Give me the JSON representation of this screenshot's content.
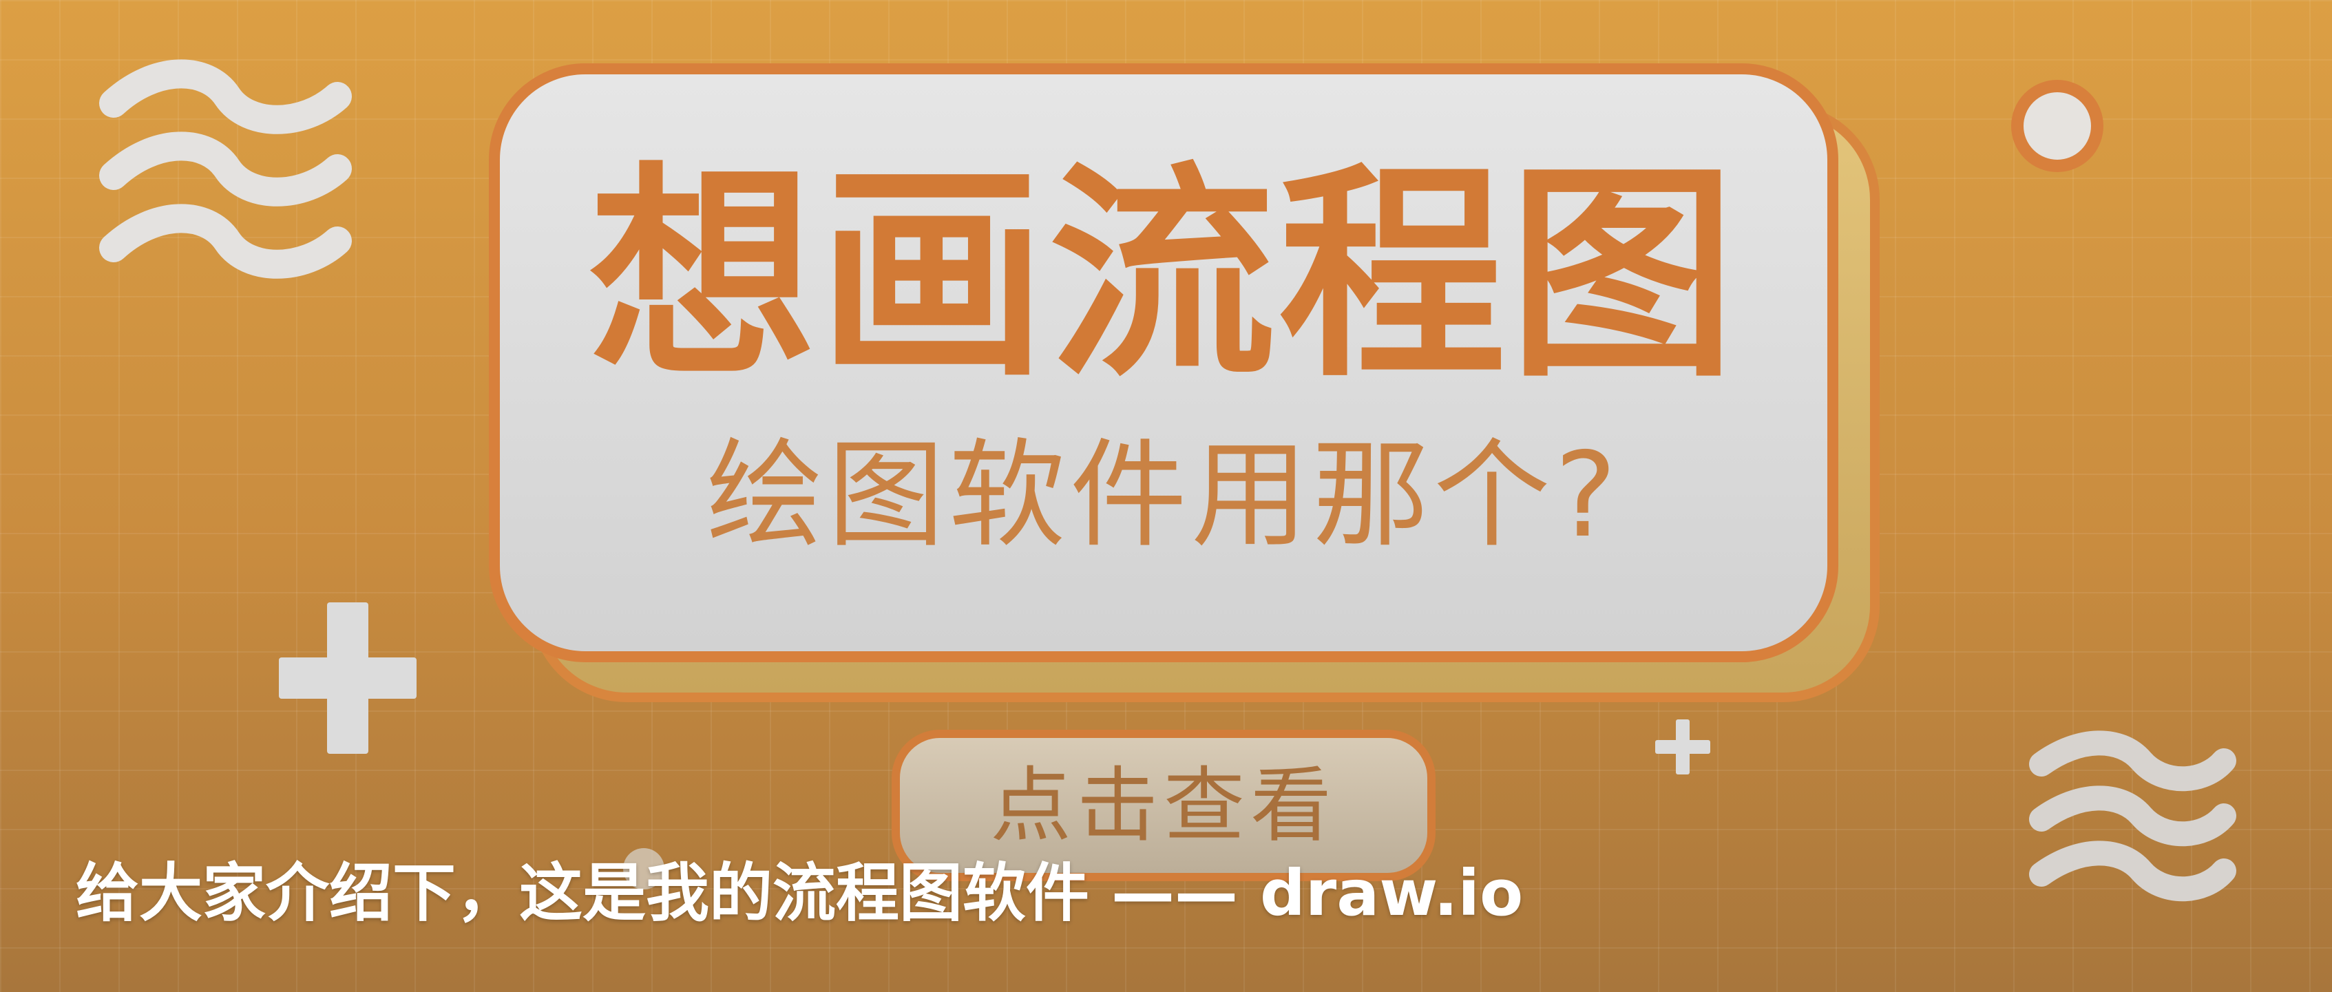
{
  "banner": {
    "title": "想画流程图",
    "subtitle": "绘图软件用那个?",
    "button_label": "点击查看"
  },
  "caption": {
    "text": "给大家介绍下，这是我的流程图软件 —— draw.io"
  },
  "colors": {
    "background": "#c98a3e",
    "card_fill": "#dedede",
    "card_border": "#d8803c",
    "title_text": "#d27a36",
    "caption_text": "#ffffff"
  },
  "decorations": {
    "icons": [
      "wave-icon",
      "plus-icon",
      "circle-icon"
    ]
  }
}
